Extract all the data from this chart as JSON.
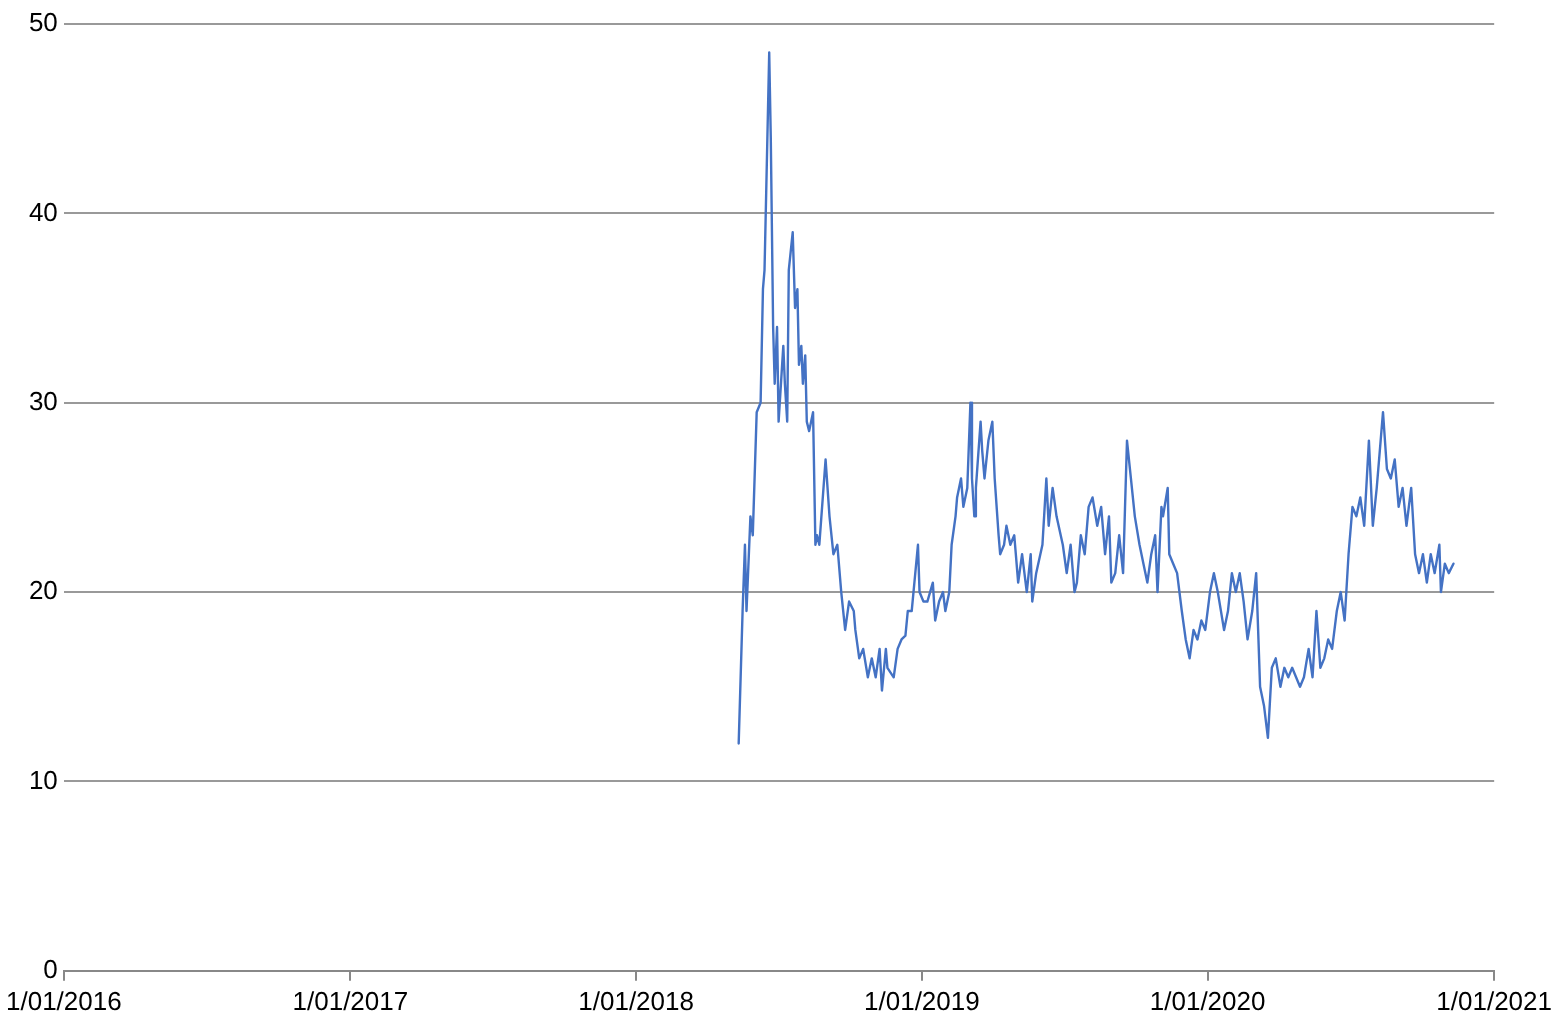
{
  "chart_data": {
    "type": "line",
    "xlim": [
      "2016-01-01",
      "2021-01-01"
    ],
    "xticks": [
      {
        "value": "2016-01-01",
        "label": "1/01/2016"
      },
      {
        "value": "2017-01-01",
        "label": "1/01/2017"
      },
      {
        "value": "2018-01-01",
        "label": "1/01/2018"
      },
      {
        "value": "2019-01-01",
        "label": "1/01/2019"
      },
      {
        "value": "2020-01-01",
        "label": "1/01/2020"
      },
      {
        "value": "2021-01-01",
        "label": "1/01/2021"
      }
    ],
    "ylim": [
      0,
      50
    ],
    "yticks": [
      0,
      10,
      20,
      30,
      40,
      50
    ],
    "grid": "y",
    "legend": false,
    "marker": "none",
    "line_style": "solid",
    "series": [
      {
        "color": "#4472c4",
        "x": [
          "2018-05-12",
          "2018-05-17",
          "2018-05-20",
          "2018-05-22",
          "2018-05-27",
          "2018-05-30",
          "2018-06-04",
          "2018-06-09",
          "2018-06-12",
          "2018-06-14",
          "2018-06-20",
          "2018-06-22",
          "2018-06-25",
          "2018-06-27",
          "2018-06-30",
          "2018-07-02",
          "2018-07-08",
          "2018-07-10",
          "2018-07-13",
          "2018-07-15",
          "2018-07-20",
          "2018-07-23",
          "2018-07-26",
          "2018-07-28",
          "2018-07-31",
          "2018-08-02",
          "2018-08-05",
          "2018-08-07",
          "2018-08-10",
          "2018-08-15",
          "2018-08-18",
          "2018-08-20",
          "2018-08-23",
          "2018-08-31",
          "2018-09-05",
          "2018-09-10",
          "2018-09-15",
          "2018-09-20",
          "2018-09-25",
          "2018-09-30",
          "2018-10-06",
          "2018-10-08",
          "2018-10-13",
          "2018-10-18",
          "2018-10-24",
          "2018-10-29",
          "2018-11-03",
          "2018-11-08",
          "2018-11-11",
          "2018-11-16",
          "2018-11-18",
          "2018-11-26",
          "2018-12-01",
          "2018-12-06",
          "2018-12-11",
          "2018-12-14",
          "2018-12-19",
          "2018-12-27",
          "2018-12-29",
          "2019-01-03",
          "2019-01-08",
          "2019-01-15",
          "2019-01-18",
          "2019-01-23",
          "2019-01-28",
          "2019-01-31",
          "2019-02-05",
          "2019-02-08",
          "2019-02-13",
          "2019-02-15",
          "2019-02-20",
          "2019-02-23",
          "2019-02-28",
          "2019-03-04",
          "2019-03-06",
          "2019-03-09",
          "2019-03-11",
          "2019-03-17",
          "2019-03-19",
          "2019-03-22",
          "2019-03-27",
          "2019-04-01",
          "2019-04-04",
          "2019-04-09",
          "2019-04-11",
          "2019-04-16",
          "2019-04-19",
          "2019-04-24",
          "2019-04-29",
          "2019-05-04",
          "2019-05-09",
          "2019-05-15",
          "2019-05-20",
          "2019-05-22",
          "2019-05-27",
          "2019-06-04",
          "2019-06-09",
          "2019-06-12",
          "2019-06-17",
          "2019-06-22",
          "2019-06-30",
          "2019-07-05",
          "2019-07-10",
          "2019-07-15",
          "2019-07-18",
          "2019-07-23",
          "2019-07-28",
          "2019-08-02",
          "2019-08-07",
          "2019-08-13",
          "2019-08-18",
          "2019-08-23",
          "2019-08-28",
          "2019-08-31",
          "2019-09-05",
          "2019-09-10",
          "2019-09-15",
          "2019-09-20",
          "2019-09-25",
          "2019-09-30",
          "2019-10-06",
          "2019-10-11",
          "2019-10-16",
          "2019-10-21",
          "2019-10-26",
          "2019-10-29",
          "2019-11-03",
          "2019-11-05",
          "2019-11-11",
          "2019-11-13",
          "2019-11-18",
          "2019-11-23",
          "2019-11-29",
          "2019-12-04",
          "2019-12-09",
          "2019-12-14",
          "2019-12-19",
          "2019-12-24",
          "2019-12-29",
          "2020-01-04",
          "2020-01-09",
          "2020-01-14",
          "2020-01-22",
          "2020-01-27",
          "2020-02-01",
          "2020-02-06",
          "2020-02-11",
          "2020-02-16",
          "2020-02-21",
          "2020-02-27",
          "2020-03-03",
          "2020-03-08",
          "2020-03-13",
          "2020-03-18",
          "2020-03-23",
          "2020-03-28",
          "2020-04-03",
          "2020-04-08",
          "2020-04-13",
          "2020-04-18",
          "2020-04-23",
          "2020-04-28",
          "2020-05-03",
          "2020-05-09",
          "2020-05-14",
          "2020-05-19",
          "2020-05-24",
          "2020-05-29",
          "2020-06-03",
          "2020-06-08",
          "2020-06-14",
          "2020-06-19",
          "2020-06-24",
          "2020-06-29",
          "2020-07-04",
          "2020-07-09",
          "2020-07-14",
          "2020-07-19",
          "2020-07-25",
          "2020-07-30",
          "2020-08-04",
          "2020-08-09",
          "2020-08-12",
          "2020-08-17",
          "2020-08-22",
          "2020-08-27",
          "2020-09-01",
          "2020-09-06",
          "2020-09-11",
          "2020-09-17",
          "2020-09-22",
          "2020-09-27",
          "2020-10-02",
          "2020-10-07",
          "2020-10-12",
          "2020-10-17",
          "2020-10-23",
          "2020-10-25",
          "2020-10-30",
          "2020-11-04",
          "2020-11-10"
        ],
        "values": [
          12,
          19,
          22.5,
          19,
          24,
          23,
          29.5,
          30,
          36,
          37,
          48.5,
          44,
          34,
          31,
          34,
          29,
          33,
          31,
          29,
          37,
          39,
          35,
          36,
          32,
          33,
          31,
          32.5,
          29,
          28.5,
          29.5,
          22.5,
          23,
          22.5,
          27,
          24,
          22,
          22.5,
          20,
          18,
          19.5,
          19,
          18,
          16.5,
          17,
          15.5,
          16.5,
          15.5,
          17,
          14.8,
          17,
          16,
          15.5,
          17,
          17.5,
          17.7,
          19,
          19,
          22.5,
          20,
          19.5,
          19.5,
          20.5,
          18.5,
          19.5,
          20,
          19,
          20,
          22.5,
          24,
          25,
          26,
          24.5,
          25.5,
          30,
          26,
          24,
          25.5,
          29,
          27.5,
          26,
          28,
          29,
          26,
          23,
          22,
          22.5,
          23.5,
          22.5,
          23,
          20.5,
          22,
          20,
          22,
          19.5,
          21,
          22.5,
          26,
          23.5,
          25.5,
          24,
          22.5,
          21,
          22.5,
          20,
          20.5,
          23,
          22,
          24.5,
          25,
          23.5,
          24.5,
          22,
          24,
          20.5,
          21,
          23,
          21,
          28,
          26,
          24,
          22.5,
          21.5,
          20.5,
          22,
          23,
          20,
          24.5,
          24,
          25.5,
          22,
          21.5,
          21,
          19,
          17.5,
          16.5,
          18,
          17.5,
          18.5,
          18,
          20,
          21,
          20,
          18,
          19,
          21,
          20,
          21,
          19.5,
          17.5,
          19,
          21,
          15,
          14,
          12.3,
          16,
          16.5,
          15,
          16,
          15.5,
          16,
          15.5,
          15,
          15.5,
          17,
          15.5,
          19,
          16,
          16.5,
          17.5,
          17,
          19,
          20,
          18.5,
          22,
          24.5,
          24,
          25,
          23.5,
          28,
          23.5,
          25.5,
          28,
          29.5,
          26.5,
          26,
          27,
          24.5,
          25.5,
          23.5,
          25.5,
          22,
          21,
          22,
          20.5,
          22,
          21,
          22.5,
          20,
          21.5,
          21,
          21.5
        ]
      }
    ]
  }
}
